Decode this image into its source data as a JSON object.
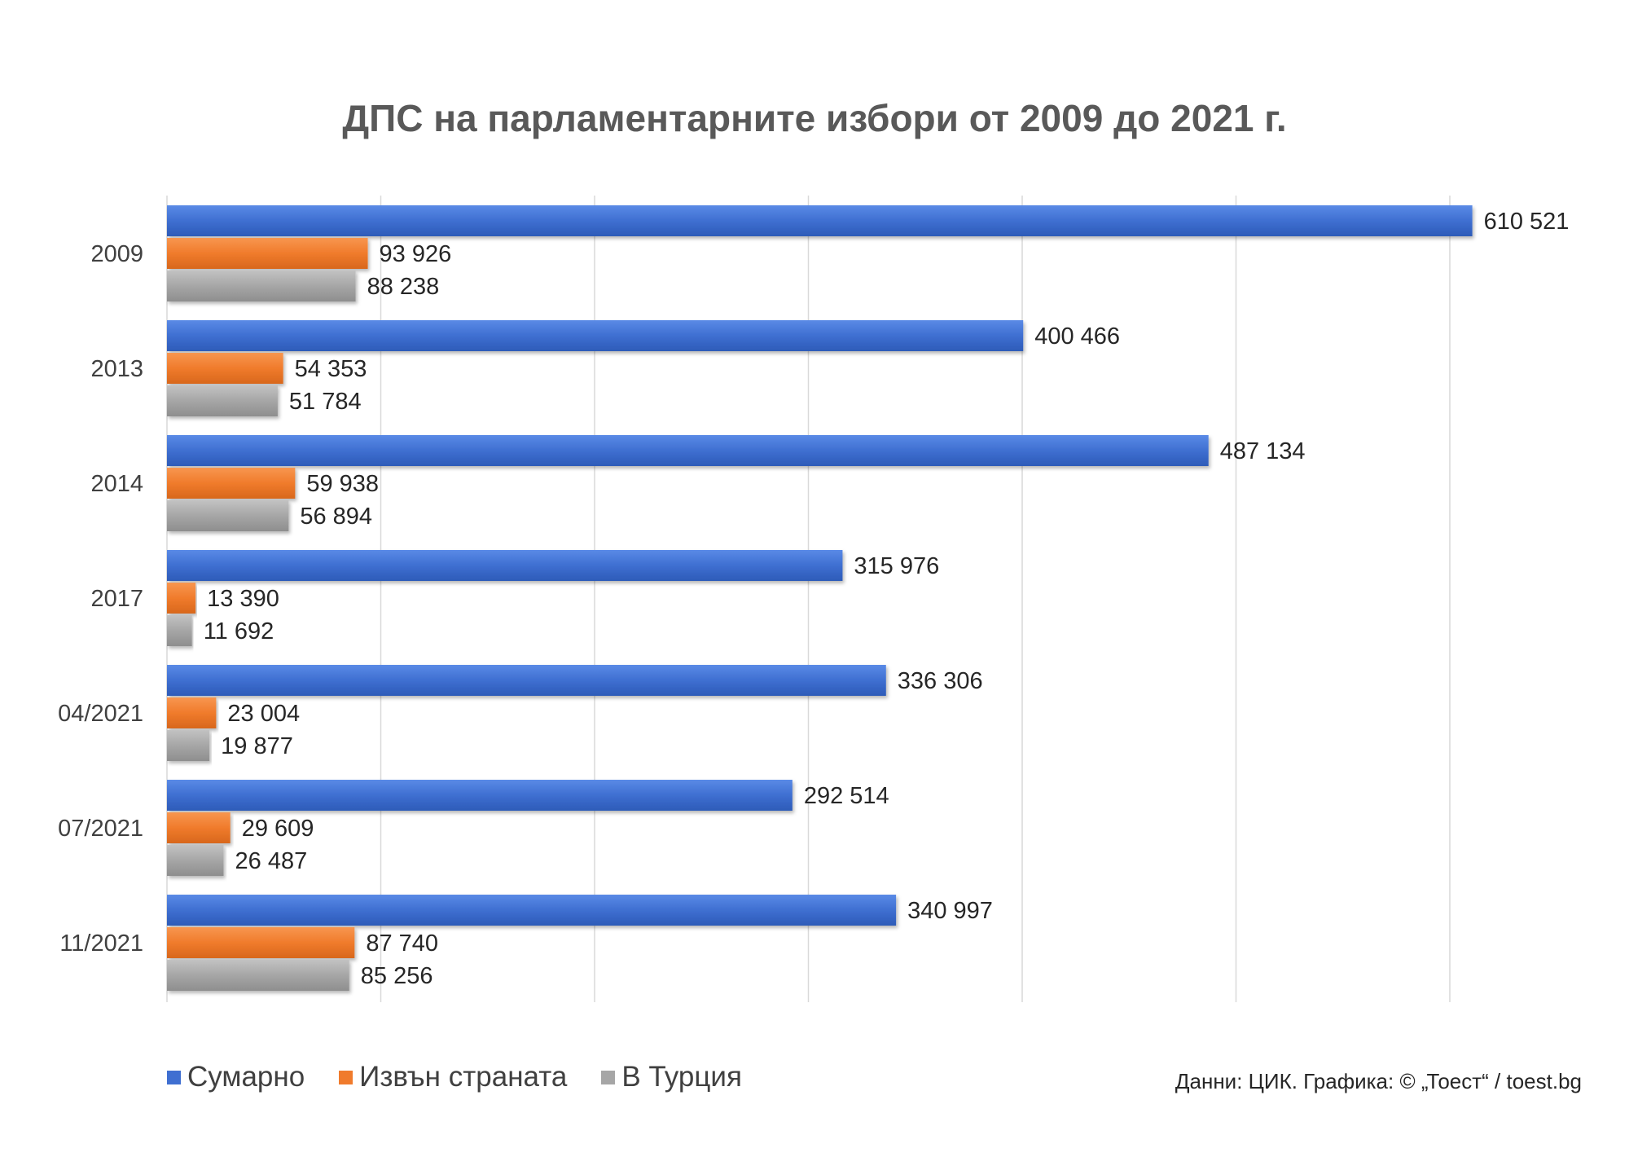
{
  "chart_data": {
    "type": "bar",
    "orientation": "horizontal",
    "title": "ДПС на парламентарните избори от 2009 до 2021 г.",
    "categories": [
      "2009",
      "2013",
      "2014",
      "2017",
      "04/2021",
      "07/2021",
      "11/2021"
    ],
    "series": [
      {
        "name": "Сумарно",
        "color": "#3f6fd1",
        "values": [
          610521,
          400466,
          487134,
          315976,
          336306,
          292514,
          340997
        ],
        "labels": [
          "610 521",
          "400 466",
          "487 134",
          "315 976",
          "336 306",
          "292 514",
          "340 997"
        ]
      },
      {
        "name": "Извън страната",
        "color": "#f07b2c",
        "values": [
          93926,
          54353,
          59938,
          13390,
          23004,
          29609,
          87740
        ],
        "labels": [
          "93 926",
          "54 353",
          "59 938",
          "13 390",
          "23 004",
          "29 609",
          "87 740"
        ]
      },
      {
        "name": "В Турция",
        "color": "#a6a6a6",
        "values": [
          88238,
          51784,
          56894,
          11692,
          19877,
          26487,
          85256
        ],
        "labels": [
          "88 238",
          "51 784",
          "56 894",
          "11 692",
          "19 877",
          "26 487",
          "85 256"
        ]
      }
    ],
    "xlim": [
      0,
      600000
    ],
    "x_gridline_step": 100000,
    "grid": true,
    "legend_position": "bottom-left"
  },
  "source_note": "Данни: ЦИК. Графика: © „Тоест“ / toest.bg"
}
